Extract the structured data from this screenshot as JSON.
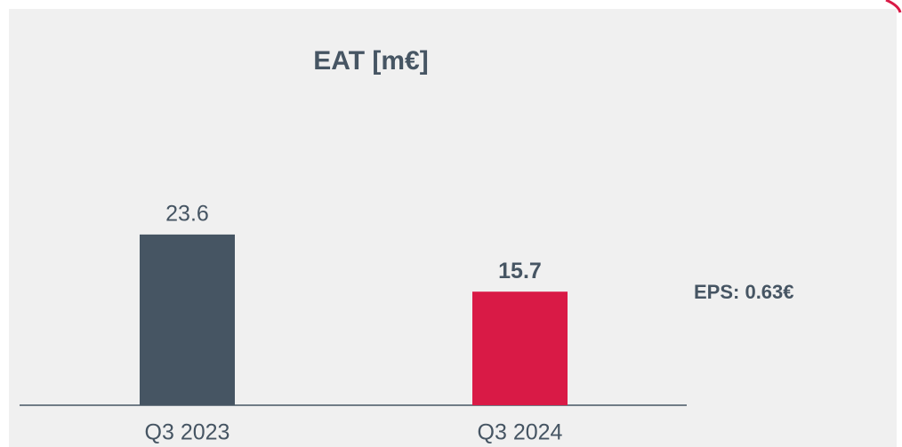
{
  "chart_data": {
    "type": "bar",
    "title": "EAT [m€]",
    "categories": [
      "Q3 2023",
      "Q3 2024"
    ],
    "values": [
      23.6,
      15.7
    ],
    "colors": [
      "#465563",
      "#d91a46"
    ],
    "annotation": "EPS: 0.63€"
  }
}
